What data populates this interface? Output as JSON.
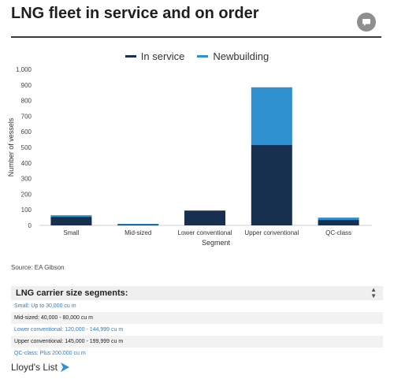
{
  "page": {
    "title": "LNG fleet in service and on order",
    "comment_icon": "comment-icon"
  },
  "colors": {
    "in_service": "#17304f",
    "newbuilding": "#2f90cf",
    "link": "#2f7fc1",
    "text": "#222222"
  },
  "chart_data": {
    "type": "bar",
    "stacked": true,
    "categories": [
      "Small",
      "Mid-sized",
      "Lower conventional",
      "Upper conventional",
      "QC-class"
    ],
    "series": [
      {
        "name": "In service",
        "values": [
          55,
          5,
          95,
          515,
          35
        ]
      },
      {
        "name": "Newbuilding",
        "values": [
          10,
          5,
          0,
          370,
          15
        ]
      }
    ],
    "xlabel": "Segment",
    "ylabel": "Number of vessels",
    "ylim": [
      0,
      1000
    ],
    "yticks": [
      0,
      100,
      200,
      300,
      400,
      500,
      600,
      700,
      800,
      900,
      1000
    ],
    "ytick_labels": [
      "0",
      "100",
      "200",
      "300",
      "400",
      "500",
      "600",
      "700",
      "800",
      "900",
      "1,000"
    ],
    "legend_position": "top-center",
    "grid": false
  },
  "source": "Source: EA Gibson",
  "segments": {
    "title": "LNG carrier size segments:",
    "sort_icon": "sort-arrows-icon",
    "rows": [
      {
        "text": "Small: Up to 30,000 cu m",
        "color": "#2f7fc1"
      },
      {
        "text": "Mid-sized: 40,000 - 80,000 cu m",
        "color": "#222222"
      },
      {
        "text": "Lower conventional: 120,000 - 144,999 cu m",
        "color": "#2f7fc1"
      },
      {
        "text": "Upper conventional: 145,000 - 199,999 cu m",
        "color": "#222222"
      },
      {
        "text": "QC-class: Plus 200,000 cu m",
        "color": "#2f7fc1"
      }
    ]
  },
  "brand": {
    "name": "Lloyd's List",
    "icon": "lloyds-list-logo-icon"
  }
}
